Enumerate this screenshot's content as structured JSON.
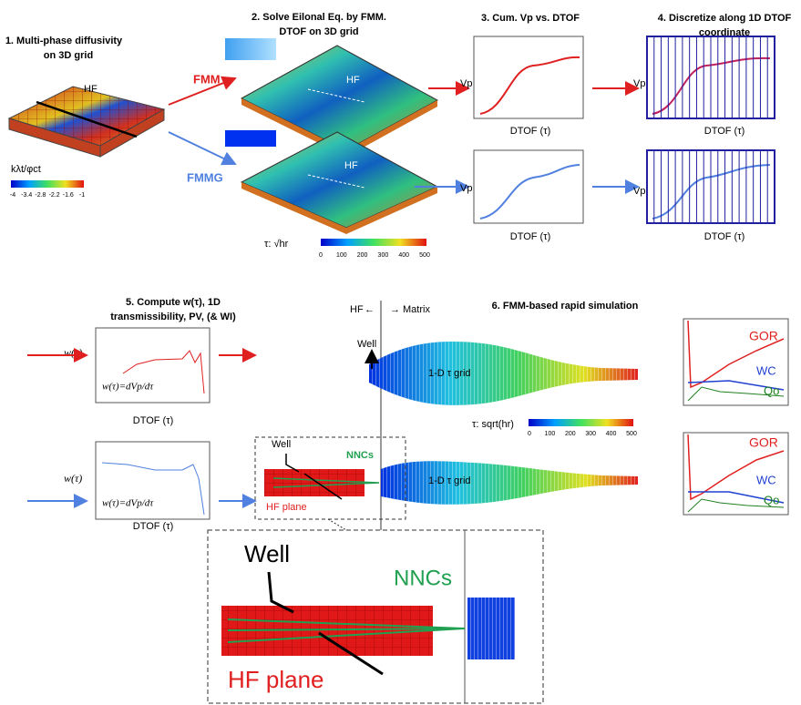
{
  "step1": {
    "title_line1": "1.   Multi-phase diffusivity",
    "title_line2": "on 3D grid",
    "hf": "HF",
    "colorbar_label": "kλt/φct",
    "colorbar_ticks": [
      "-4",
      "-3.4",
      "-2.8",
      "-2.2",
      "-1.6",
      "-1"
    ]
  },
  "methods": {
    "fmm": "FMM",
    "fmmg": "FMMG"
  },
  "step2": {
    "title_line1": "2. Solve Eilonal Eq. by FMM.",
    "title_line2": "DTOF on 3D grid",
    "hf_top": "HF",
    "hf_bottom": "HF",
    "colorbar_label": "τ: √hr",
    "colorbar_ticks": [
      "0",
      "100",
      "200",
      "300",
      "400",
      "500"
    ]
  },
  "step3": {
    "title": "3. Cum. Vp vs. DTOF",
    "ylabel_top": "Vp",
    "xlabel_top": "DTOF (τ)",
    "ylabel_bottom": "Vp",
    "xlabel_bottom": "DTOF (τ)"
  },
  "step4": {
    "title_line1": "4. Discretize along 1D DTOF",
    "title_line2": "coordinate",
    "ylabel_top": "Vp",
    "xlabel_top": "DTOF (τ)",
    "ylabel_bottom": "Vp",
    "xlabel_bottom": "DTOF (τ)"
  },
  "step5": {
    "title_line1": "5. Compute w(τ), 1D",
    "title_line2": "transmissibility, PV, (& WI)",
    "ylabel_top": "w(τ)",
    "formula_top": "w(τ)=dVp/dτ",
    "xlabel_top": "DTOF (τ)",
    "ylabel_bottom": "w(τ)",
    "formula_bottom": "w(τ)=dVp/dτ",
    "xlabel_bottom": "DTOF (τ)"
  },
  "step6": {
    "title": "6. FMM-based rapid simulation",
    "hf": "HF",
    "matrix": "Matrix",
    "well_top": "Well",
    "grid_top": "1-D τ grid",
    "grid_bottom": "1-D τ grid",
    "colorbar_label": "τ: sqrt(hr)",
    "colorbar_ticks": [
      "0",
      "100",
      "200",
      "300",
      "400",
      "500"
    ],
    "inset": {
      "well": "Well",
      "nncs": "NNCs",
      "hf_plane": "HF plane"
    },
    "zoom": {
      "well": "Well",
      "nncs": "NNCs",
      "hf_plane": "HF plane"
    },
    "results_top": {
      "gor": "GOR",
      "wc": "WC",
      "qo": "Qo"
    },
    "results_bottom": {
      "gor": "GOR",
      "wc": "WC",
      "qo": "Qo"
    }
  }
}
